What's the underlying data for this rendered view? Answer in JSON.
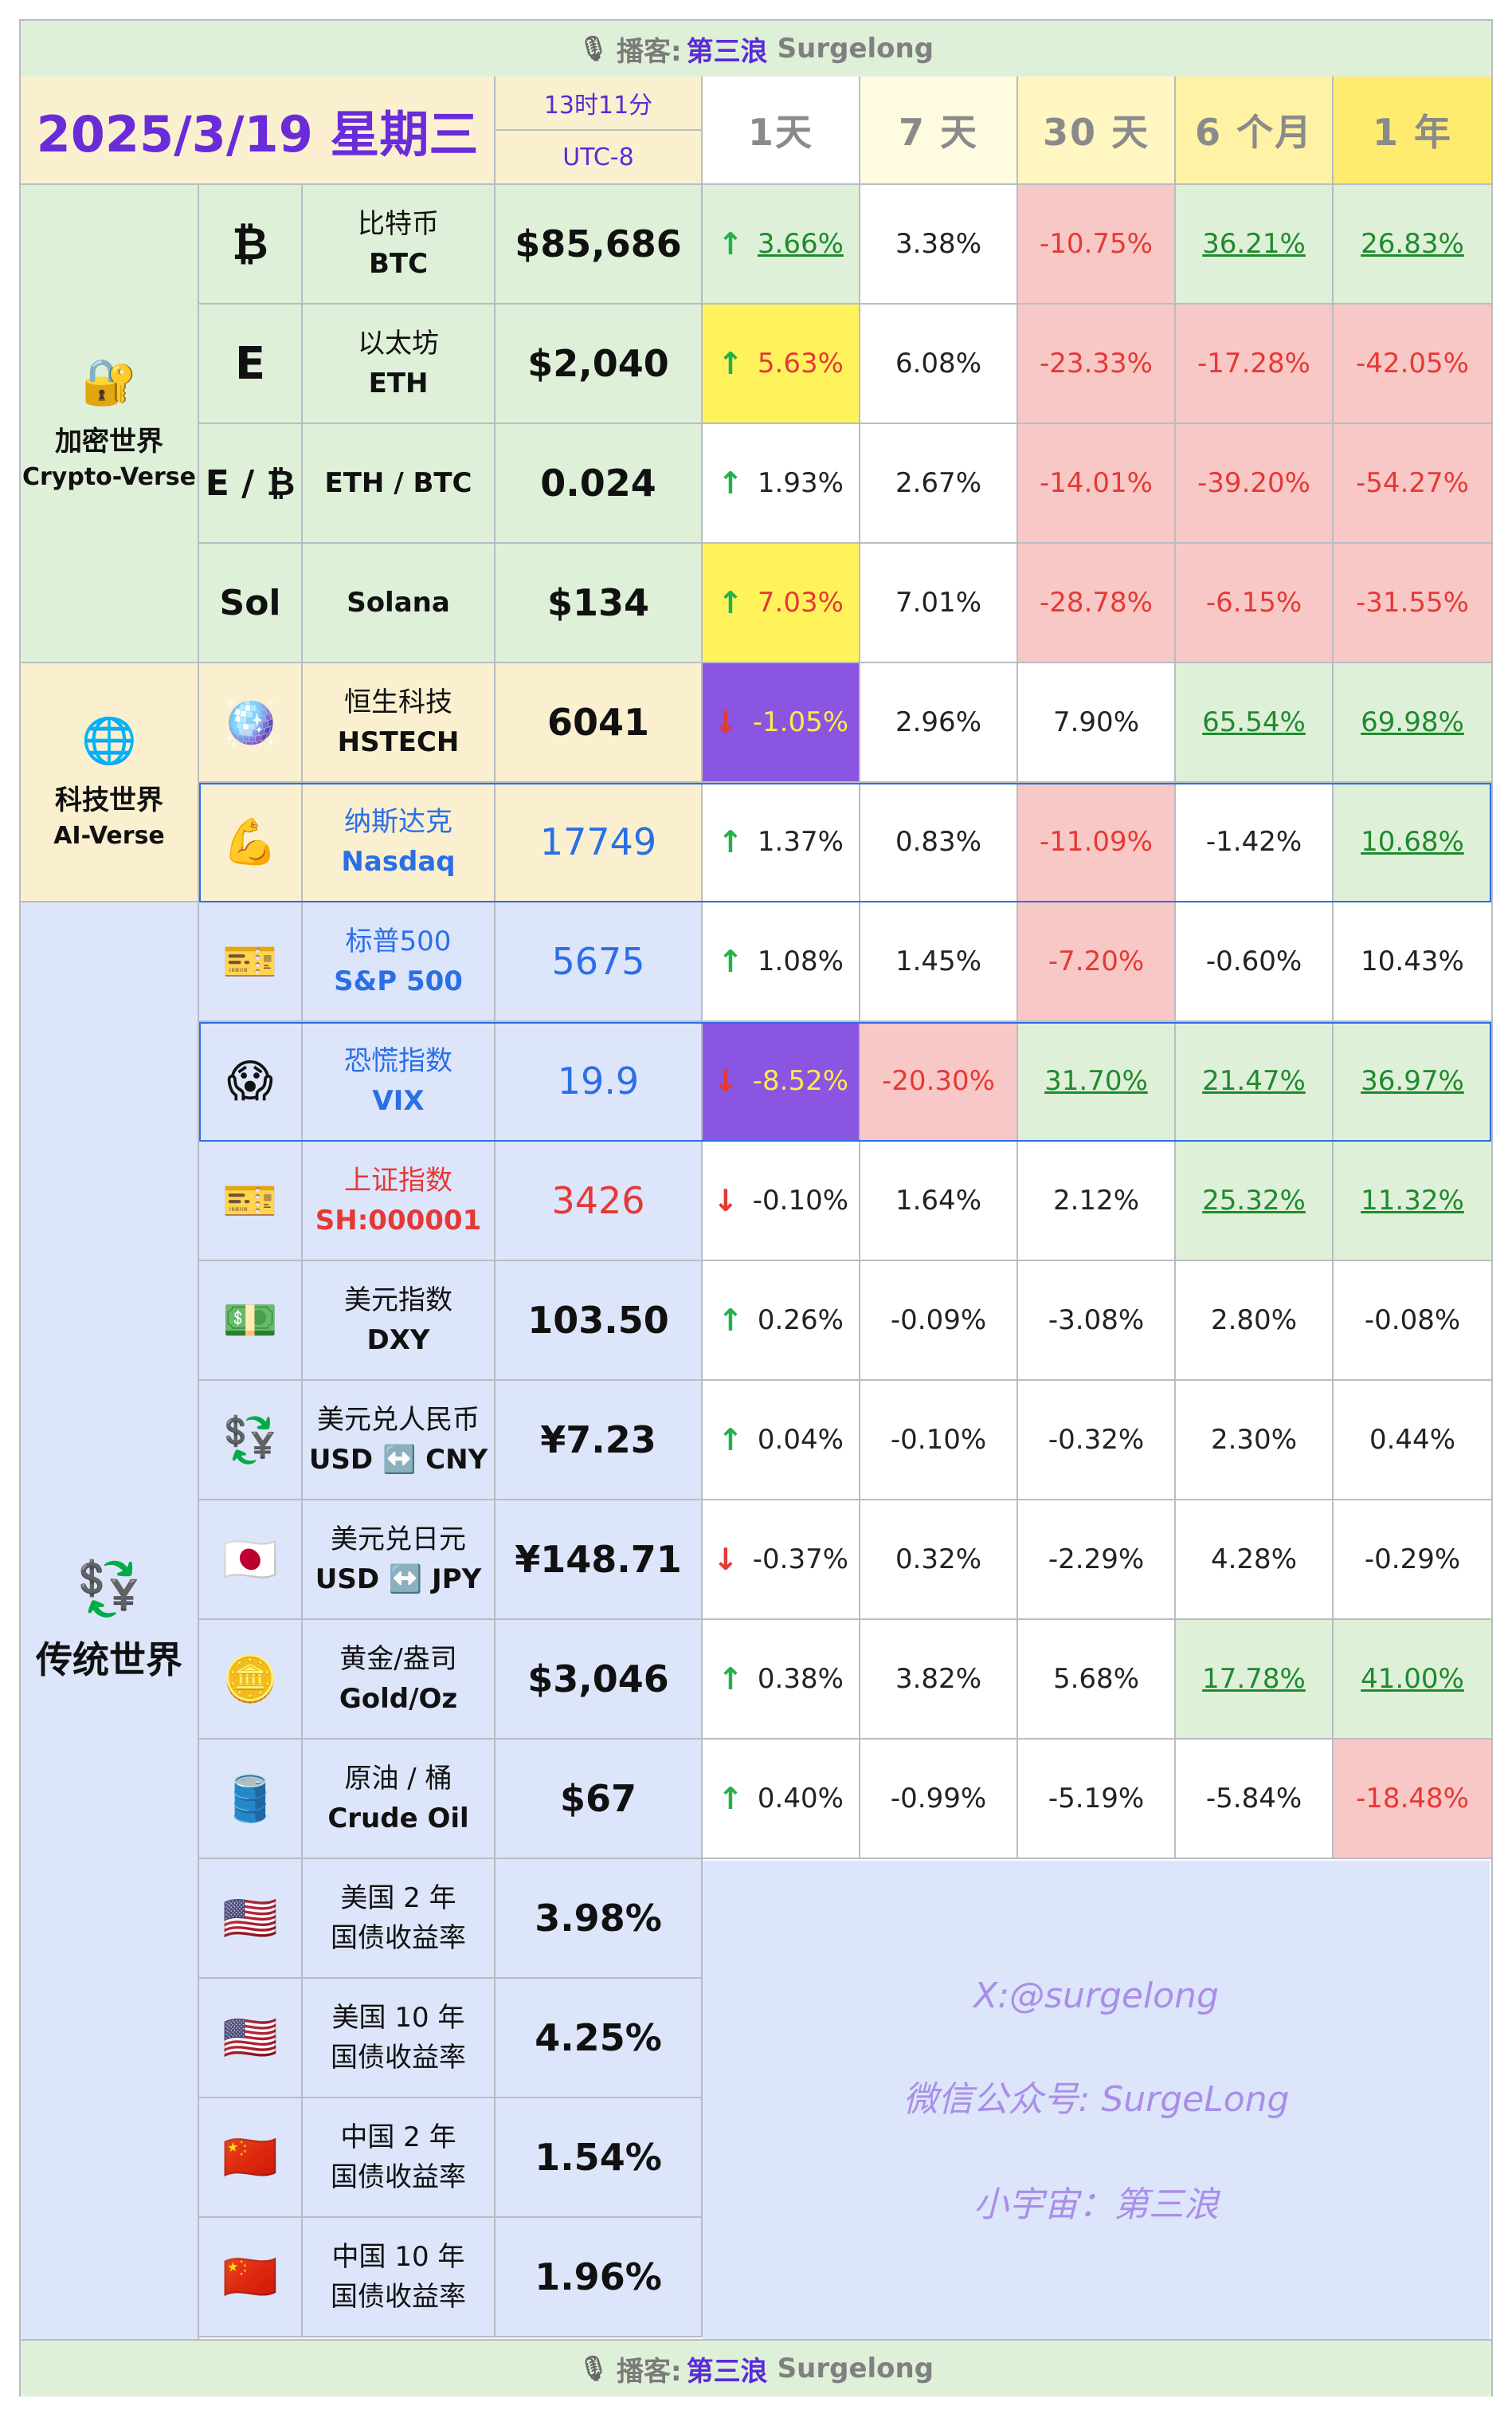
{
  "banner": {
    "icon": "microphone-icon",
    "label": "播客:",
    "name_cn": "第三浪",
    "name_en": "Surgelong"
  },
  "header": {
    "date": "2025/3/19 星期三",
    "time": "13时11分",
    "timezone": "UTC-8",
    "periods": [
      "1天",
      "7 天",
      "30 天",
      "6 个月",
      "1 年"
    ]
  },
  "categories": [
    {
      "icon": "lock-key-icon",
      "glyph": "🔐",
      "name": "加密世界",
      "en": "Crypto-Verse"
    },
    {
      "icon": "globe-icon",
      "glyph": "🌐",
      "name": "科技世界",
      "en": "AI-Verse"
    },
    {
      "icon": "currency-exchange-icon",
      "glyph": "💱",
      "name": "传统世界",
      "en": ""
    }
  ],
  "rows": [
    {
      "icon": "bitcoin-icon",
      "glyph": "₿",
      "name_cn": "比特币",
      "name_en": "BTC",
      "price": "$85,686",
      "d1_dir": "up",
      "p1": "3.66%",
      "p7": "3.38%",
      "p30": "-10.75%",
      "p6m": "36.21%",
      "p1y": "26.83%"
    },
    {
      "icon": "ethereum-icon",
      "glyph": "E",
      "name_cn": "以太坊",
      "name_en": "ETH",
      "price": "$2,040",
      "d1_dir": "up",
      "p1": "5.63%",
      "p7": "6.08%",
      "p30": "-23.33%",
      "p6m": "-17.28%",
      "p1y": "-42.05%"
    },
    {
      "icon": "eth-btc-icon",
      "glyph": "E / ₿",
      "name_cn": "",
      "name_en": "ETH / BTC",
      "price": "0.024",
      "d1_dir": "up",
      "p1": "1.93%",
      "p7": "2.67%",
      "p30": "-14.01%",
      "p6m": "-39.20%",
      "p1y": "-54.27%"
    },
    {
      "icon": "solana-icon",
      "glyph": "Sol",
      "name_cn": "",
      "name_en": "Solana",
      "price": "$134",
      "d1_dir": "up",
      "p1": "7.03%",
      "p7": "7.01%",
      "p30": "-28.78%",
      "p6m": "-6.15%",
      "p1y": "-31.55%"
    },
    {
      "icon": "disco-ball-icon",
      "glyph": "🪩",
      "name_cn": "恒生科技",
      "name_en": "HSTECH",
      "price": "6041",
      "d1_dir": "down",
      "p1": "-1.05%",
      "p7": "2.96%",
      "p30": "7.90%",
      "p6m": "65.54%",
      "p1y": "69.98%"
    },
    {
      "icon": "flexed-biceps-icon",
      "glyph": "💪",
      "name_cn": "纳斯达克",
      "name_en": "Nasdaq",
      "price": "17749",
      "d1_dir": "up",
      "p1": "1.37%",
      "p7": "0.83%",
      "p30": "-11.09%",
      "p6m": "-1.42%",
      "p1y": "10.68%"
    },
    {
      "icon": "ticket-icon",
      "glyph": "🎫",
      "name_cn": "标普500",
      "name_en": "S&P 500",
      "price": "5675",
      "d1_dir": "up",
      "p1": "1.08%",
      "p7": "1.45%",
      "p30": "-7.20%",
      "p6m": "-0.60%",
      "p1y": "10.43%"
    },
    {
      "icon": "screaming-face-icon",
      "glyph": "😱",
      "name_cn": "恐慌指数",
      "name_en": "VIX",
      "price": "19.9",
      "d1_dir": "down",
      "p1": "-8.52%",
      "p7": "-20.30%",
      "p30": "31.70%",
      "p6m": "21.47%",
      "p1y": "36.97%"
    },
    {
      "icon": "ticket-icon",
      "glyph": "🎫",
      "name_cn": "上证指数",
      "name_en": "SH:000001",
      "price": "3426",
      "d1_dir": "down",
      "p1": "-0.10%",
      "p7": "1.64%",
      "p30": "2.12%",
      "p6m": "25.32%",
      "p1y": "11.32%"
    },
    {
      "icon": "dollar-banknote-icon",
      "glyph": "💵",
      "name_cn": "美元指数",
      "name_en": "DXY",
      "price": "103.50",
      "d1_dir": "up",
      "p1": "0.26%",
      "p7": "-0.09%",
      "p30": "-3.08%",
      "p6m": "2.80%",
      "p1y": "-0.08%"
    },
    {
      "icon": "currency-exchange-icon",
      "glyph": "💱",
      "name_cn": "美元兑人民币",
      "name_en": "USD ↔️ CNY",
      "price": "¥7.23",
      "d1_dir": "up",
      "p1": "0.04%",
      "p7": "-0.10%",
      "p30": "-0.32%",
      "p6m": "2.30%",
      "p1y": "0.44%"
    },
    {
      "icon": "japan-flag-icon",
      "glyph": "🇯🇵",
      "name_cn": "美元兑日元",
      "name_en": "USD ↔️ JPY",
      "price": "¥148.71",
      "d1_dir": "down",
      "p1": "-0.37%",
      "p7": "0.32%",
      "p30": "-2.29%",
      "p6m": "4.28%",
      "p1y": "-0.29%"
    },
    {
      "icon": "gold-bar-icon",
      "glyph": "🪙",
      "name_cn": "黄金/盎司",
      "name_en": "Gold/Oz",
      "price": "$3,046",
      "d1_dir": "up",
      "p1": "0.38%",
      "p7": "3.82%",
      "p30": "5.68%",
      "p6m": "17.78%",
      "p1y": "41.00%"
    },
    {
      "icon": "oil-drum-icon",
      "glyph": "🛢️",
      "name_cn": "原油 / 桶",
      "name_en": "Crude Oil",
      "price": "$67",
      "d1_dir": "up",
      "p1": "0.40%",
      "p7": "-0.99%",
      "p30": "-5.19%",
      "p6m": "-5.84%",
      "p1y": "-18.48%"
    },
    {
      "icon": "us-flag-icon",
      "glyph": "🇺🇸",
      "name_cn": "美国 2 年",
      "name_en": "国债收益率",
      "price": "3.98%"
    },
    {
      "icon": "us-flag-icon",
      "glyph": "🇺🇸",
      "name_cn": "美国 10 年",
      "name_en": "国债收益率",
      "price": "4.25%"
    },
    {
      "icon": "china-flag-icon",
      "glyph": "🇨🇳",
      "name_cn": "中国 2 年",
      "name_en": "国债收益率",
      "price": "1.54%"
    },
    {
      "icon": "china-flag-icon",
      "glyph": "🇨🇳",
      "name_cn": "中国 10 年",
      "name_en": "国债收益率",
      "price": "1.96%"
    }
  ],
  "watermark": [
    "X:@surgelong",
    "微信公众号: SurgeLong",
    "小宇宙：第三浪"
  ],
  "colors": {
    "green": "#dff0d8",
    "red": "#f8c8c6",
    "yellow": "#fff35c",
    "purple": "#8a55e0",
    "accent": "#6a2bd9"
  }
}
